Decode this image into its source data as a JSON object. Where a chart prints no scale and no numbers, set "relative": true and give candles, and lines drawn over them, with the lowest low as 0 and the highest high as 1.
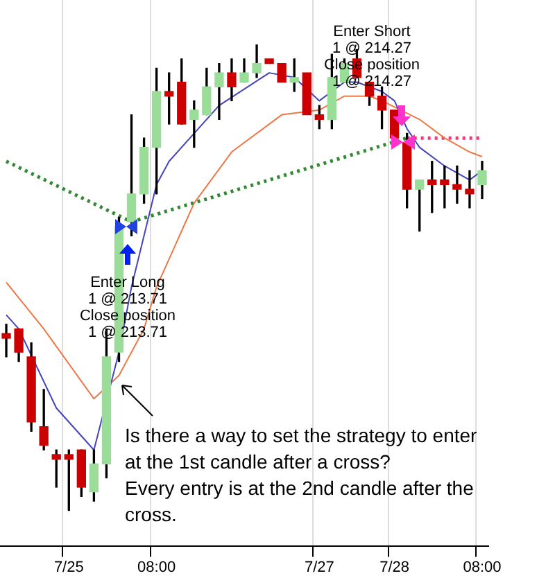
{
  "chart_data": {
    "type": "candlestick",
    "relative": true,
    "grid": "x",
    "categories": [
      null,
      null,
      null,
      null,
      null,
      "7/25",
      null,
      null,
      null,
      null,
      null,
      null,
      "08:00",
      null,
      null,
      null,
      null,
      null,
      null,
      null,
      null,
      null,
      null,
      null,
      null,
      "7/27",
      null,
      null,
      null,
      null,
      null,
      "7/28",
      null,
      null,
      null,
      null,
      null,
      null,
      "08:00"
    ],
    "ohlc": [
      [
        0.38,
        0.4,
        0.33,
        0.37
      ],
      [
        0.39,
        0.39,
        0.32,
        0.34
      ],
      [
        0.33,
        0.36,
        0.17,
        0.19
      ],
      [
        0.18,
        0.26,
        0.13,
        0.14
      ],
      [
        0.12,
        0.13,
        0.05,
        0.11
      ],
      [
        0.12,
        0.13,
        0,
        0.11
      ],
      [
        0.13,
        0.13,
        0.03,
        0.05
      ],
      [
        0.04,
        0.13,
        0.02,
        0.1
      ],
      [
        0.1,
        0.39,
        0.07,
        0.33
      ],
      [
        0.34,
        0.63,
        0.32,
        0.61
      ],
      [
        0.62,
        0.85,
        0.59,
        0.68
      ],
      [
        0.68,
        0.8,
        0.66,
        0.78
      ],
      [
        0.78,
        0.95,
        0.68,
        0.9
      ],
      [
        0.9,
        0.94,
        0.83,
        0.89
      ],
      [
        0.92,
        0.97,
        0.83,
        0.83
      ],
      [
        0.84,
        0.88,
        0.78,
        0.86
      ],
      [
        0.85,
        0.95,
        0.85,
        0.91
      ],
      [
        0.91,
        0.96,
        0.84,
        0.94
      ],
      [
        0.94,
        0.97,
        0.88,
        0.91
      ],
      [
        0.92,
        0.97,
        0.92,
        0.94
      ],
      [
        0.94,
        1,
        0.93,
        0.96
      ],
      [
        0.97,
        0.97,
        0.96,
        0.96
      ],
      [
        0.96,
        0.96,
        0.92,
        0.92
      ],
      [
        0.92,
        0.97,
        0.9,
        0.93
      ],
      [
        0.94,
        0.94,
        0.85,
        0.85
      ],
      [
        0.85,
        0.87,
        0.82,
        0.84
      ],
      [
        0.84,
        0.98,
        0.82,
        0.93
      ],
      [
        0.92,
        0.97,
        0.92,
        0.96
      ],
      [
        0.97,
        0.99,
        0.93,
        0.93
      ],
      [
        0.92,
        0.92,
        0.87,
        0.89
      ],
      [
        0.89,
        0.91,
        0.82,
        0.86
      ],
      [
        0.86,
        0.86,
        0.8,
        0.8
      ],
      [
        0.79,
        0.81,
        0.65,
        0.69
      ],
      [
        0.69,
        0.71,
        0.6,
        0.71
      ],
      [
        0.71,
        0.75,
        0.64,
        0.7
      ],
      [
        0.71,
        0.74,
        0.65,
        0.7
      ],
      [
        0.7,
        0.74,
        0.66,
        0.69
      ],
      [
        0.69,
        0.73,
        0.65,
        0.68
      ],
      [
        0.7,
        0.75,
        0.67,
        0.73
      ]
    ],
    "colors": [
      "#cc0000",
      "#cc0000",
      "#cc0000",
      "#cc0000",
      "#cc0000",
      "#cc0000",
      "#cc0000",
      "#99dd99",
      "#99dd99",
      "#99dd99",
      "#99dd99",
      "#99dd99",
      "#99dd99",
      "#cc0000",
      "#cc0000",
      "#99dd99",
      "#99dd99",
      "#99dd99",
      "#cc0000",
      "#99dd99",
      "#99dd99",
      "#cc0000",
      "#cc0000",
      "#99dd99",
      "#cc0000",
      "#cc0000",
      "#99dd99",
      "#99dd99",
      "#cc0000",
      "#cc0000",
      "#cc0000",
      "#cc0000",
      "#cc0000",
      "#99dd99",
      "#cc0000",
      "#cc0000",
      "#cc0000",
      "#cc0000",
      "#99dd99"
    ],
    "series": [
      {
        "type": "line",
        "color": "#4444bb",
        "line_style": "solid",
        "values": [
          0.42,
          0.39,
          null,
          null,
          0.22,
          null,
          null,
          0.13,
          null,
          0.34,
          0.48,
          null,
          0.7,
          0.75,
          null,
          null,
          null,
          0.87,
          null,
          null,
          null,
          0.94,
          null,
          0.93,
          null,
          0.88,
          null,
          0.92,
          0.92,
          null,
          0.9,
          0.88,
          0.82,
          0.78,
          null,
          0.74,
          null,
          0.71,
          0.73
        ]
      },
      {
        "type": "line",
        "color": "#ee7744",
        "line_style": "solid",
        "values": [
          0.49,
          null,
          null,
          0.39,
          null,
          null,
          null,
          0.24,
          null,
          0.29,
          null,
          0.39,
          0.48,
          null,
          null,
          0.66,
          null,
          null,
          0.77,
          null,
          null,
          null,
          0.85,
          null,
          null,
          0.86,
          null,
          0.89,
          null,
          0.89,
          0.88,
          null,
          null,
          0.84,
          null,
          0.8,
          null,
          0.77,
          0.76
        ]
      },
      {
        "type": "line",
        "color": "#338833",
        "line_style": "dotted",
        "values": [
          0.75,
          null,
          null,
          null,
          null,
          null,
          null,
          null,
          null,
          null,
          0.62,
          null,
          null,
          null,
          null,
          null,
          null,
          null,
          null,
          null,
          null,
          null,
          null,
          null,
          null,
          null,
          null,
          null,
          null,
          null,
          null,
          null,
          0.8,
          null,
          null,
          null,
          null,
          null,
          null
        ]
      },
      {
        "type": "line",
        "color": "#ff3377",
        "line_style": "dotted",
        "values": [
          null,
          null,
          null,
          null,
          null,
          null,
          null,
          null,
          null,
          null,
          null,
          null,
          null,
          null,
          null,
          null,
          null,
          null,
          null,
          null,
          null,
          null,
          null,
          null,
          null,
          null,
          null,
          null,
          null,
          null,
          null,
          null,
          0.8,
          null,
          null,
          null,
          null,
          null,
          0.8
        ]
      }
    ],
    "annotations": [
      "Enter Long\n1 @ 213.71\nClose position\n1 @ 213.71",
      "Enter Short\n1 @ 214.27\nClose position\n1 @ 214.27",
      "Is there a way to set the strategy to enter\nat the 1st candle after a cross?\nEvery entry is at the 2nd candle after the\ncross."
    ]
  }
}
